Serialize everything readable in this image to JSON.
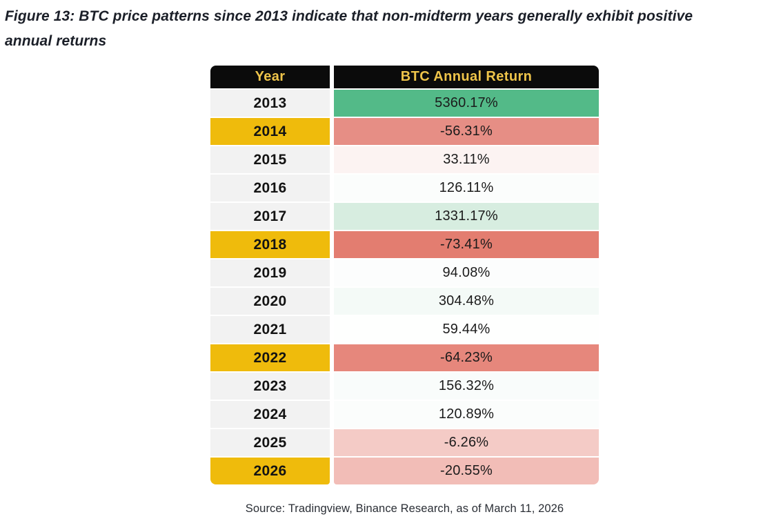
{
  "figure": {
    "title": "Figure 13: BTC price patterns since 2013 indicate that non-midterm years generally exhibit positive annual returns"
  },
  "table": {
    "columns": [
      "Year",
      "BTC Annual Return"
    ],
    "rows": [
      {
        "year": "2013",
        "return": "5360.17%",
        "midterm": false,
        "bg": "#53BA88"
      },
      {
        "year": "2014",
        "return": "-56.31%",
        "midterm": true,
        "bg": "#E68E85"
      },
      {
        "year": "2015",
        "return": "33.11%",
        "midterm": false,
        "bg": "#FCF3F2"
      },
      {
        "year": "2016",
        "return": "126.11%",
        "midterm": false,
        "bg": "#FBFDFC"
      },
      {
        "year": "2017",
        "return": "1331.17%",
        "midterm": false,
        "bg": "#D7EDE0"
      },
      {
        "year": "2018",
        "return": "-73.41%",
        "midterm": true,
        "bg": "#E37D70"
      },
      {
        "year": "2019",
        "return": "94.08%",
        "midterm": false,
        "bg": "#FCFDFD"
      },
      {
        "year": "2020",
        "return": "304.48%",
        "midterm": false,
        "bg": "#F4FAF7"
      },
      {
        "year": "2021",
        "return": "59.44%",
        "midterm": false,
        "bg": "#FEFFFE"
      },
      {
        "year": "2022",
        "return": "-64.23%",
        "midterm": true,
        "bg": "#E6877C"
      },
      {
        "year": "2023",
        "return": "156.32%",
        "midterm": false,
        "bg": "#F9FCFB"
      },
      {
        "year": "2024",
        "return": "120.89%",
        "midterm": false,
        "bg": "#FBFDFC"
      },
      {
        "year": "2025",
        "return": "-6.26%",
        "midterm": false,
        "bg": "#F4CBC6"
      },
      {
        "year": "2026",
        "return": "-20.55%",
        "midterm": true,
        "bg": "#F2BDB7"
      }
    ]
  },
  "source": "Source: Tradingview, Binance Research, as of March 11, 2026",
  "colors": {
    "header_bg": "#0B0B0B",
    "header_text": "#EEC44A",
    "year_bg": "#F2F2F2",
    "midterm_bg": "#EFBB0C",
    "positive_strong": "#53BA88",
    "negative_strong": "#E37D70",
    "title_text": "#1b1f28"
  },
  "chart_data": {
    "type": "table",
    "title": "Figure 13: BTC price patterns since 2013 indicate that non-midterm years generally exhibit positive annual returns",
    "columns": [
      "Year",
      "BTC Annual Return"
    ],
    "categories": [
      "2013",
      "2014",
      "2015",
      "2016",
      "2017",
      "2018",
      "2019",
      "2020",
      "2021",
      "2022",
      "2023",
      "2024",
      "2025",
      "2026"
    ],
    "values": [
      5360.17,
      -56.31,
      33.11,
      126.11,
      1331.17,
      -73.41,
      94.08,
      304.48,
      59.44,
      -64.23,
      156.32,
      120.89,
      -6.26,
      -20.55
    ],
    "units": "percent",
    "midterm_years": [
      "2014",
      "2018",
      "2022",
      "2026"
    ],
    "highlight": "midterm years shaded gold; returns heat-colored green (positive) to red (negative)",
    "source": "Source: Tradingview, Binance Research, as of March 11, 2026"
  }
}
